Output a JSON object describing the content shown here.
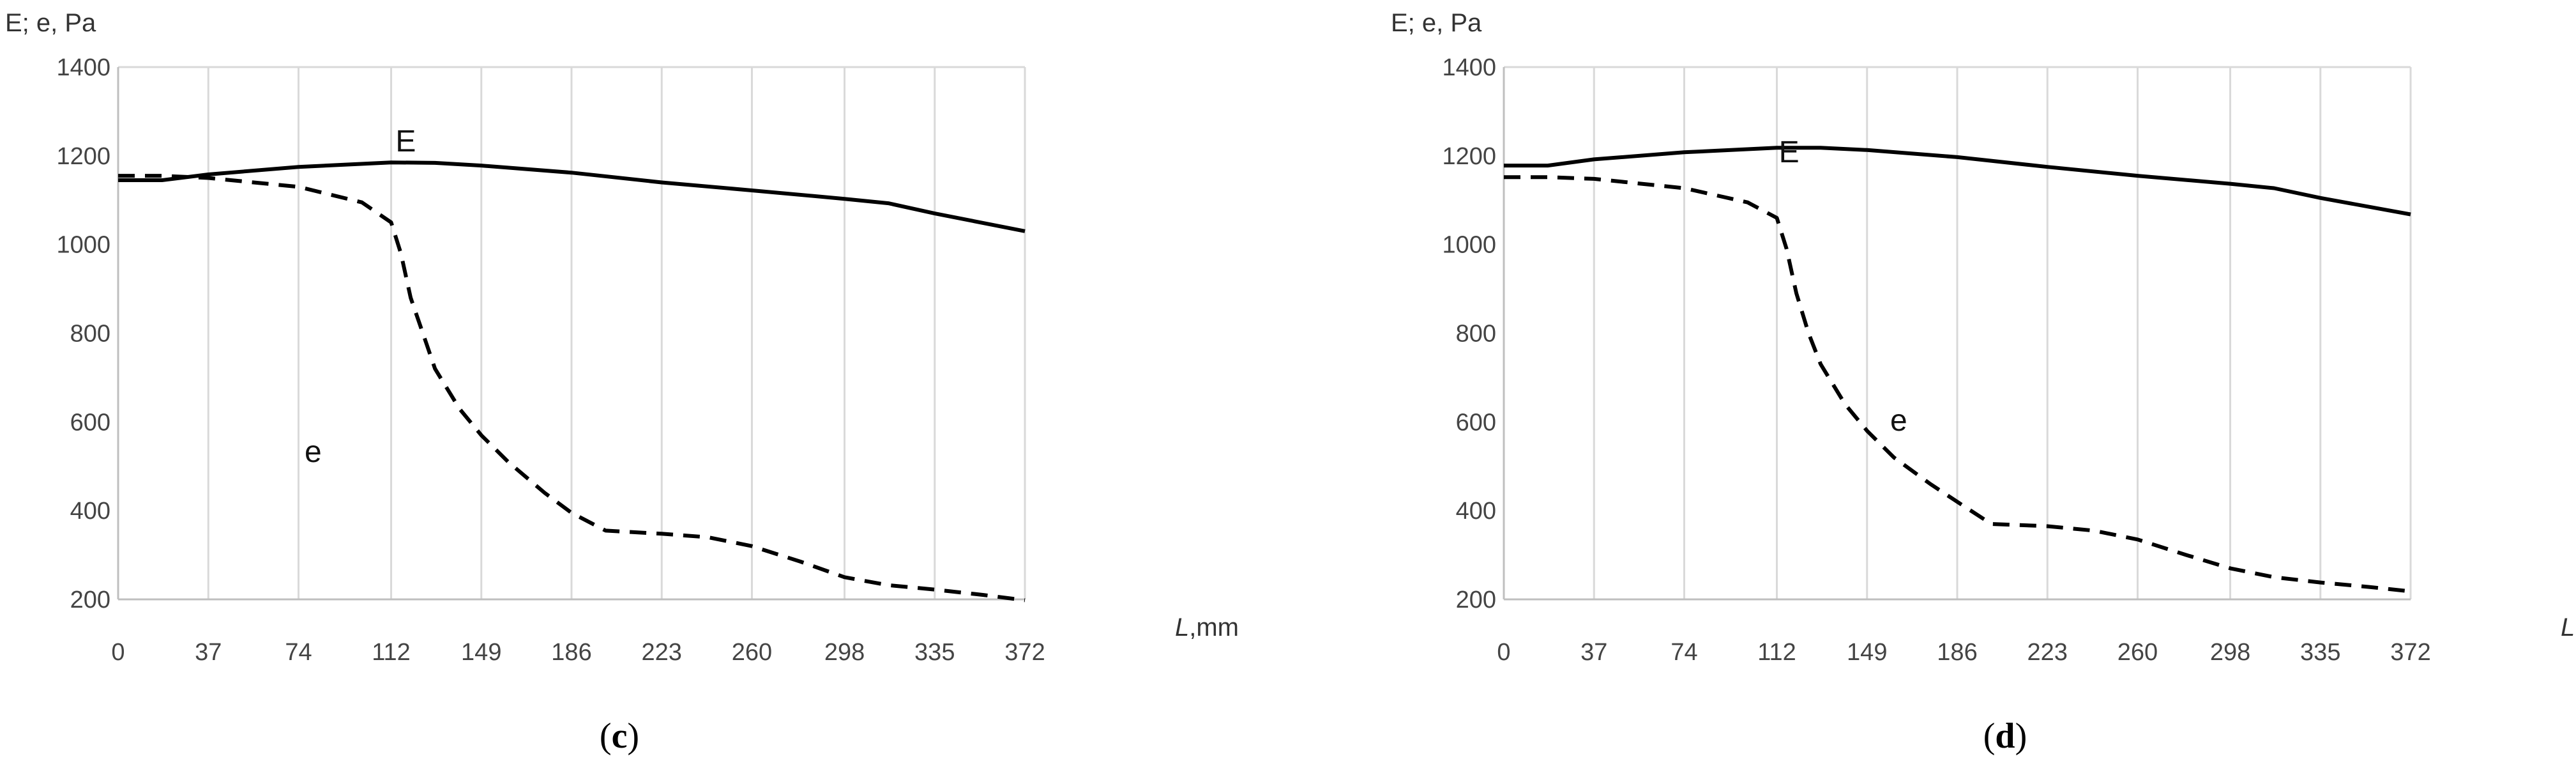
{
  "captions": [
    "c",
    "d"
  ],
  "y_title": "E; e, Pa",
  "x_title_var": "L",
  "x_title_unit": ",mm",
  "colors": {
    "line": "#000000",
    "grid": "#d9d9d9",
    "axis": "#bfbfbf"
  },
  "chart_data": [
    {
      "type": "line",
      "panel": "c",
      "x_ticks": [
        0,
        37,
        74,
        112,
        149,
        186,
        223,
        260,
        298,
        335,
        372
      ],
      "y_ticks": [
        200,
        400,
        600,
        800,
        1000,
        1200,
        1400
      ],
      "xlim": [
        0,
        372
      ],
      "ylim": [
        200,
        1400
      ],
      "grid": "vertical",
      "series": [
        {
          "name": "E",
          "style": "solid",
          "label_at": [
            118,
            1210
          ],
          "x": [
            0,
            18,
            37,
            74,
            112,
            130,
            149,
            186,
            223,
            260,
            298,
            316,
            335,
            372
          ],
          "y": [
            1145,
            1145,
            1158,
            1175,
            1185,
            1184,
            1178,
            1162,
            1140,
            1122,
            1103,
            1093,
            1070,
            1030
          ]
        },
        {
          "name": "e",
          "style": "dashed",
          "label_at": [
            80,
            510
          ],
          "x": [
            0,
            18,
            37,
            74,
            100,
            112,
            116,
            120,
            125,
            130,
            140,
            149,
            160,
            175,
            186,
            200,
            223,
            242,
            260,
            280,
            298,
            316,
            335,
            355,
            372
          ],
          "y": [
            1155,
            1155,
            1150,
            1130,
            1095,
            1050,
            980,
            880,
            800,
            720,
            630,
            570,
            510,
            440,
            395,
            355,
            348,
            340,
            320,
            285,
            250,
            232,
            222,
            210,
            198
          ]
        }
      ]
    },
    {
      "type": "line",
      "panel": "d",
      "x_ticks": [
        0,
        37,
        74,
        112,
        149,
        186,
        223,
        260,
        298,
        335,
        372
      ],
      "y_ticks": [
        200,
        400,
        600,
        800,
        1000,
        1200,
        1400
      ],
      "xlim": [
        0,
        372
      ],
      "ylim": [
        200,
        1400
      ],
      "grid": "vertical",
      "series": [
        {
          "name": "E",
          "style": "solid",
          "label_at": [
            117,
            1185
          ],
          "x": [
            0,
            18,
            37,
            74,
            112,
            130,
            149,
            186,
            223,
            260,
            298,
            316,
            335,
            372
          ],
          "y": [
            1178,
            1178,
            1192,
            1208,
            1218,
            1218,
            1213,
            1197,
            1175,
            1155,
            1137,
            1127,
            1105,
            1068
          ]
        },
        {
          "name": "e",
          "style": "dashed",
          "label_at": [
            162,
            580
          ],
          "x": [
            0,
            18,
            37,
            74,
            100,
            112,
            116,
            120,
            125,
            130,
            140,
            149,
            160,
            175,
            186,
            200,
            223,
            242,
            260,
            280,
            298,
            316,
            335,
            355,
            372
          ],
          "y": [
            1152,
            1152,
            1148,
            1127,
            1095,
            1060,
            990,
            890,
            800,
            730,
            640,
            580,
            520,
            460,
            420,
            370,
            365,
            355,
            335,
            300,
            270,
            250,
            238,
            228,
            218
          ]
        }
      ]
    }
  ]
}
